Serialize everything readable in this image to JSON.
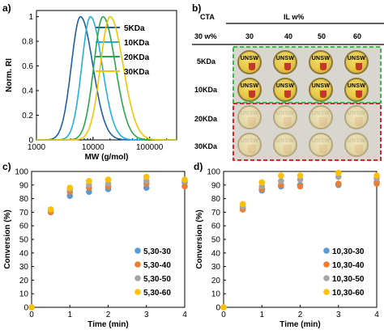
{
  "panels": {
    "a": {
      "label": "a)",
      "chart_data": {
        "type": "line",
        "xlabel": "MW (g/mol)",
        "ylabel": "Norm. RI",
        "xscale": "log",
        "xlim": [
          1000,
          300000
        ],
        "ylim": [
          0,
          1.05
        ],
        "xticks": [
          "1000",
          "10000",
          "100000"
        ],
        "yticks": [
          "0",
          "0.2",
          "0.4",
          "0.6",
          "0.8",
          "1"
        ],
        "legend_position": "top-right",
        "series": [
          {
            "name": "5KDa",
            "color": "#1f5fa6",
            "peak": 6000,
            "width": 0.19
          },
          {
            "name": "10KDa",
            "color": "#22b0e0",
            "peak": 9000,
            "width": 0.18
          },
          {
            "name": "20KDa",
            "color": "#2ca64a",
            "peak": 15000,
            "width": 0.19
          },
          {
            "name": "30KDa",
            "color": "#f5c400",
            "peak": 20000,
            "width": 0.2
          }
        ]
      }
    },
    "b": {
      "label": "b)",
      "header_cta": "CTA",
      "header_il": "IL w%",
      "cta_sub": "30 w%",
      "columns": [
        "30",
        "40",
        "50",
        "60"
      ],
      "rows": [
        "5KDa",
        "10KDa",
        "20KDa",
        "30KDa"
      ],
      "dish_text": "UNSW",
      "green_box": "#3cb54a",
      "red_box": "#e0262b"
    },
    "c": {
      "label": "c)",
      "chart_data": {
        "type": "scatter",
        "xlabel": "Time (min)",
        "ylabel": "Conversion (%)",
        "xlim": [
          0,
          4
        ],
        "ylim": [
          0,
          100
        ],
        "xticks": [
          "0",
          "1",
          "2",
          "3",
          "4"
        ],
        "yticks": [
          "0",
          "10",
          "20",
          "30",
          "40",
          "50",
          "60",
          "70",
          "80",
          "90",
          "100"
        ],
        "legend_position": "bottom-right",
        "x": [
          0,
          0.5,
          1,
          1.5,
          2,
          3,
          4
        ],
        "series": [
          {
            "name": "5,30-30",
            "color": "#5b9bd5",
            "values": [
              0,
              71,
              82,
              85,
              87,
              88,
              92
            ]
          },
          {
            "name": "5,30-40",
            "color": "#ed7d31",
            "values": [
              0,
              70,
              85,
              88,
              89,
              91,
              89
            ]
          },
          {
            "name": "5,30-50",
            "color": "#a5a5a5",
            "values": [
              0,
              72,
              87,
              90,
              91,
              93,
              93
            ]
          },
          {
            "name": "5,30-60",
            "color": "#ffc000",
            "values": [
              0,
              72,
              88,
              93,
              94,
              96,
              94
            ]
          }
        ]
      }
    },
    "d": {
      "label": "d)",
      "chart_data": {
        "type": "scatter",
        "xlabel": "Time (min)",
        "ylabel": "Conversion (%)",
        "xlim": [
          0,
          4
        ],
        "ylim": [
          0,
          100
        ],
        "xticks": [
          "0",
          "1",
          "2",
          "3",
          "4"
        ],
        "yticks": [
          "0",
          "10",
          "20",
          "30",
          "40",
          "50",
          "60",
          "70",
          "80",
          "90",
          "100"
        ],
        "legend_position": "bottom-right",
        "x": [
          0,
          0.5,
          1,
          1.5,
          2,
          3,
          4
        ],
        "series": [
          {
            "name": "10,30-30",
            "color": "#5b9bd5",
            "values": [
              0,
              73,
              86,
              89,
              90,
              90,
              92
            ]
          },
          {
            "name": "10,30-40",
            "color": "#ed7d31",
            "values": [
              0,
              72,
              87,
              90,
              89,
              91,
              91
            ]
          },
          {
            "name": "10,30-50",
            "color": "#a5a5a5",
            "values": [
              0,
              74,
              89,
              93,
              94,
              96,
              95
            ]
          },
          {
            "name": "10,30-60",
            "color": "#ffc000",
            "values": [
              0,
              76,
              92,
              97,
              97,
              99,
              97
            ]
          }
        ]
      }
    }
  }
}
